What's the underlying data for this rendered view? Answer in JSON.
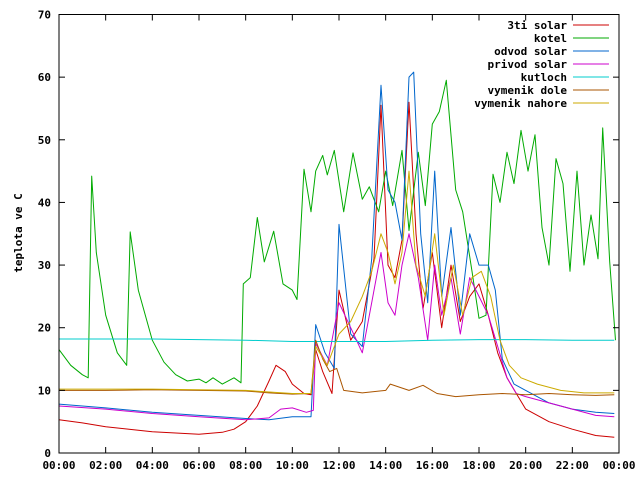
{
  "chart_data": {
    "type": "line",
    "ylabel": "teplota ve C",
    "xlim": [
      0,
      24
    ],
    "ylim": [
      0,
      70
    ],
    "legend_position": "top-right",
    "grid": false,
    "x_ticks": [
      {
        "value": 0,
        "label": "00:00"
      },
      {
        "value": 2,
        "label": "02:00"
      },
      {
        "value": 4,
        "label": "04:00"
      },
      {
        "value": 6,
        "label": "06:00"
      },
      {
        "value": 8,
        "label": "08:00"
      },
      {
        "value": 10,
        "label": "10:00"
      },
      {
        "value": 12,
        "label": "12:00"
      },
      {
        "value": 14,
        "label": "14:00"
      },
      {
        "value": 16,
        "label": "16:00"
      },
      {
        "value": 18,
        "label": "18:00"
      },
      {
        "value": 20,
        "label": "20:00"
      },
      {
        "value": 22,
        "label": "22:00"
      },
      {
        "value": 24,
        "label": "00:00"
      }
    ],
    "y_ticks": [
      {
        "value": 0,
        "label": "0"
      },
      {
        "value": 10,
        "label": "10"
      },
      {
        "value": 20,
        "label": "20"
      },
      {
        "value": 30,
        "label": "30"
      },
      {
        "value": 40,
        "label": "40"
      },
      {
        "value": 50,
        "label": "50"
      },
      {
        "value": 60,
        "label": "60"
      },
      {
        "value": 70,
        "label": "70"
      }
    ],
    "series": [
      {
        "name": "3ti solar",
        "color": "#cc0000",
        "points": [
          [
            0,
            5.3
          ],
          [
            1,
            4.8
          ],
          [
            2,
            4.2
          ],
          [
            3,
            3.8
          ],
          [
            4,
            3.4
          ],
          [
            5,
            3.2
          ],
          [
            6,
            3.0
          ],
          [
            7,
            3.3
          ],
          [
            7.5,
            3.8
          ],
          [
            8,
            5.0
          ],
          [
            8.5,
            7.5
          ],
          [
            9,
            11.5
          ],
          [
            9.3,
            14.0
          ],
          [
            9.7,
            13.0
          ],
          [
            10,
            11.0
          ],
          [
            10.5,
            9.5
          ],
          [
            10.8,
            9.3
          ],
          [
            11,
            16.5
          ],
          [
            11.3,
            13.0
          ],
          [
            11.7,
            9.5
          ],
          [
            12,
            26
          ],
          [
            12.5,
            18
          ],
          [
            13,
            21
          ],
          [
            13.5,
            31
          ],
          [
            13.8,
            55.5
          ],
          [
            14.1,
            30
          ],
          [
            14.4,
            28
          ],
          [
            14.7,
            34
          ],
          [
            15.0,
            56.0
          ],
          [
            15.3,
            35
          ],
          [
            15.6,
            23
          ],
          [
            16.0,
            32
          ],
          [
            16.4,
            20
          ],
          [
            16.8,
            30
          ],
          [
            17.2,
            21
          ],
          [
            17.6,
            25
          ],
          [
            18.0,
            27
          ],
          [
            18.4,
            22
          ],
          [
            18.8,
            16
          ],
          [
            19.2,
            12
          ],
          [
            19.6,
            9.5
          ],
          [
            20,
            7.0
          ],
          [
            21,
            5.0
          ],
          [
            22,
            3.8
          ],
          [
            23,
            2.8
          ],
          [
            23.8,
            2.5
          ]
        ]
      },
      {
        "name": "kotel",
        "color": "#00aa00",
        "points": [
          [
            0,
            16.5
          ],
          [
            0.5,
            14
          ],
          [
            1,
            12.5
          ],
          [
            1.25,
            12.0
          ],
          [
            1.4,
            44.2
          ],
          [
            1.6,
            32
          ],
          [
            2,
            22
          ],
          [
            2.5,
            16
          ],
          [
            2.9,
            14
          ],
          [
            3.05,
            35.3
          ],
          [
            3.4,
            26
          ],
          [
            4,
            18
          ],
          [
            4.5,
            14.5
          ],
          [
            5,
            12.5
          ],
          [
            5.5,
            11.5
          ],
          [
            6,
            11.8
          ],
          [
            6.3,
            11.2
          ],
          [
            6.6,
            12.0
          ],
          [
            7,
            11.0
          ],
          [
            7.5,
            12.0
          ],
          [
            7.8,
            11.2
          ],
          [
            7.9,
            27.0
          ],
          [
            8.2,
            28
          ],
          [
            8.5,
            37.6
          ],
          [
            8.8,
            30.5
          ],
          [
            9.2,
            35.4
          ],
          [
            9.6,
            27
          ],
          [
            10,
            26
          ],
          [
            10.2,
            24.5
          ],
          [
            10.5,
            45.3
          ],
          [
            10.8,
            38.5
          ],
          [
            11.0,
            45.0
          ],
          [
            11.3,
            47.5
          ],
          [
            11.5,
            44.4
          ],
          [
            11.8,
            48.3
          ],
          [
            12.2,
            38.5
          ],
          [
            12.6,
            47.9
          ],
          [
            13.0,
            40.5
          ],
          [
            13.3,
            42.5
          ],
          [
            13.7,
            38.5
          ],
          [
            14.0,
            45.0
          ],
          [
            14.3,
            39.5
          ],
          [
            14.7,
            48.3
          ],
          [
            15.0,
            35.5
          ],
          [
            15.4,
            48.0
          ],
          [
            15.7,
            39.5
          ],
          [
            16.0,
            52.5
          ],
          [
            16.3,
            54.5
          ],
          [
            16.6,
            59.5
          ],
          [
            17.0,
            42.0
          ],
          [
            17.3,
            38.5
          ],
          [
            17.7,
            29.0
          ],
          [
            18.0,
            21.5
          ],
          [
            18.3,
            22.0
          ],
          [
            18.6,
            44.5
          ],
          [
            18.9,
            40.0
          ],
          [
            19.2,
            48.0
          ],
          [
            19.5,
            43.0
          ],
          [
            19.8,
            51.5
          ],
          [
            20.1,
            45.0
          ],
          [
            20.4,
            50.8
          ],
          [
            20.7,
            36.0
          ],
          [
            21.0,
            30.0
          ],
          [
            21.3,
            47.0
          ],
          [
            21.6,
            43.0
          ],
          [
            21.9,
            29.0
          ],
          [
            22.2,
            45.0
          ],
          [
            22.5,
            30.0
          ],
          [
            22.8,
            38.0
          ],
          [
            23.1,
            31.0
          ],
          [
            23.3,
            51.9
          ],
          [
            23.6,
            30.5
          ],
          [
            23.85,
            18.0
          ]
        ]
      },
      {
        "name": "odvod solar",
        "color": "#0066cc",
        "points": [
          [
            0,
            7.8
          ],
          [
            2,
            7.2
          ],
          [
            4,
            6.5
          ],
          [
            6,
            6.0
          ],
          [
            8,
            5.5
          ],
          [
            9,
            5.3
          ],
          [
            10,
            5.8
          ],
          [
            10.8,
            5.8
          ],
          [
            11,
            20.5
          ],
          [
            11.4,
            16
          ],
          [
            11.8,
            13.5
          ],
          [
            12,
            36.5
          ],
          [
            12.5,
            19
          ],
          [
            13,
            17
          ],
          [
            13.4,
            31
          ],
          [
            13.8,
            58.7
          ],
          [
            14.1,
            42
          ],
          [
            14.4,
            40
          ],
          [
            14.7,
            34
          ],
          [
            15.0,
            60.0
          ],
          [
            15.2,
            60.8
          ],
          [
            15.5,
            35
          ],
          [
            15.8,
            24
          ],
          [
            16.1,
            45
          ],
          [
            16.4,
            25
          ],
          [
            16.8,
            36
          ],
          [
            17.2,
            22
          ],
          [
            17.6,
            35
          ],
          [
            18.0,
            30
          ],
          [
            18.4,
            30
          ],
          [
            18.7,
            26
          ],
          [
            19.0,
            15
          ],
          [
            19.5,
            11
          ],
          [
            20,
            10
          ],
          [
            21,
            8.0
          ],
          [
            22,
            7.0
          ],
          [
            23,
            6.5
          ],
          [
            23.8,
            6.3
          ]
        ]
      },
      {
        "name": "privod solar",
        "color": "#cc00cc",
        "points": [
          [
            0,
            7.5
          ],
          [
            2,
            7.0
          ],
          [
            4,
            6.3
          ],
          [
            6,
            5.8
          ],
          [
            8,
            5.3
          ],
          [
            9,
            5.6
          ],
          [
            9.5,
            7.0
          ],
          [
            10,
            7.2
          ],
          [
            10.6,
            6.5
          ],
          [
            10.9,
            6.8
          ],
          [
            11,
            17.5
          ],
          [
            11.5,
            14
          ],
          [
            12,
            24
          ],
          [
            12.5,
            20
          ],
          [
            13,
            16
          ],
          [
            13.4,
            24
          ],
          [
            13.8,
            32
          ],
          [
            14.1,
            24
          ],
          [
            14.4,
            22
          ],
          [
            14.7,
            30
          ],
          [
            15.0,
            35
          ],
          [
            15.4,
            28
          ],
          [
            15.8,
            18
          ],
          [
            16.1,
            30
          ],
          [
            16.4,
            22
          ],
          [
            16.8,
            28
          ],
          [
            17.2,
            19
          ],
          [
            17.6,
            28
          ],
          [
            18.0,
            25
          ],
          [
            18.4,
            22
          ],
          [
            18.8,
            17
          ],
          [
            19.2,
            12
          ],
          [
            19.6,
            9.5
          ],
          [
            20,
            9.0
          ],
          [
            21,
            8.0
          ],
          [
            22,
            7.0
          ],
          [
            23,
            6.0
          ],
          [
            23.8,
            5.8
          ]
        ]
      },
      {
        "name": "kutloch",
        "color": "#00cccc",
        "points": [
          [
            0,
            18.2
          ],
          [
            4,
            18.2
          ],
          [
            8,
            18.0
          ],
          [
            10,
            17.8
          ],
          [
            12,
            17.8
          ],
          [
            14,
            17.8
          ],
          [
            16,
            18.0
          ],
          [
            18,
            18.1
          ],
          [
            20,
            18.1
          ],
          [
            22,
            18.0
          ],
          [
            23.8,
            18.0
          ]
        ]
      },
      {
        "name": "vymenik dole",
        "color": "#aa5500",
        "points": [
          [
            0,
            10.0
          ],
          [
            2,
            10.0
          ],
          [
            4,
            10.1
          ],
          [
            6,
            10.0
          ],
          [
            8,
            9.9
          ],
          [
            9,
            9.6
          ],
          [
            10,
            9.4
          ],
          [
            10.8,
            9.5
          ],
          [
            11,
            18.0
          ],
          [
            11.3,
            15.0
          ],
          [
            11.6,
            13.0
          ],
          [
            11.9,
            13.5
          ],
          [
            12.2,
            10.0
          ],
          [
            13,
            9.6
          ],
          [
            14,
            10.0
          ],
          [
            14.2,
            11.0
          ],
          [
            15,
            10.0
          ],
          [
            15.6,
            10.8
          ],
          [
            16.2,
            9.5
          ],
          [
            17,
            9.0
          ],
          [
            18,
            9.3
          ],
          [
            19,
            9.5
          ],
          [
            20,
            9.3
          ],
          [
            21,
            9.5
          ],
          [
            22,
            9.3
          ],
          [
            23,
            9.2
          ],
          [
            23.8,
            9.3
          ]
        ]
      },
      {
        "name": "vymenik nahore",
        "color": "#ccaa00",
        "points": [
          [
            0,
            10.2
          ],
          [
            4,
            10.2
          ],
          [
            8,
            10.0
          ],
          [
            10,
            9.5
          ],
          [
            10.8,
            9.5
          ],
          [
            11,
            17.0
          ],
          [
            11.5,
            14
          ],
          [
            12,
            19
          ],
          [
            12.5,
            21
          ],
          [
            13,
            25
          ],
          [
            13.4,
            29
          ],
          [
            13.8,
            35
          ],
          [
            14.1,
            32
          ],
          [
            14.4,
            27
          ],
          [
            14.7,
            32
          ],
          [
            15.0,
            45
          ],
          [
            15.3,
            30
          ],
          [
            15.7,
            25
          ],
          [
            16.1,
            35
          ],
          [
            16.5,
            22
          ],
          [
            16.9,
            30
          ],
          [
            17.3,
            22
          ],
          [
            17.7,
            28
          ],
          [
            18.1,
            29
          ],
          [
            18.5,
            25
          ],
          [
            18.9,
            18
          ],
          [
            19.3,
            14
          ],
          [
            19.8,
            12
          ],
          [
            20.5,
            11
          ],
          [
            21.5,
            10
          ],
          [
            22.5,
            9.6
          ],
          [
            23.8,
            9.6
          ]
        ]
      }
    ]
  }
}
